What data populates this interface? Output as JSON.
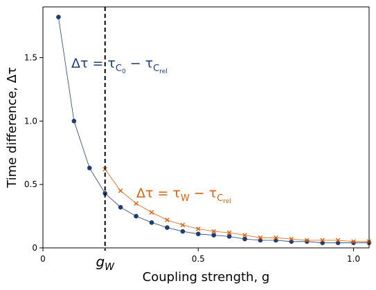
{
  "chart_data": {
    "type": "line",
    "xlabel": "Coupling strength, g",
    "ylabel": "Time difference,  Δτ",
    "xlim": [
      0,
      1.05
    ],
    "ylim": [
      0,
      1.9
    ],
    "x_ticks": [
      {
        "value": 0,
        "label": "0"
      },
      {
        "value": 0.5,
        "label": "0.5"
      },
      {
        "value": 1.0,
        "label": "1.0"
      }
    ],
    "y_ticks": [
      {
        "value": 0,
        "label": "0"
      },
      {
        "value": 0.5,
        "label": "0.5"
      },
      {
        "value": 1.0,
        "label": "1.0"
      },
      {
        "value": 1.5,
        "label": "1.5"
      }
    ],
    "grid": false,
    "vline": {
      "x": 0.2,
      "label": "g_W",
      "style": "dashed"
    },
    "series": [
      {
        "name": "Δτ = τ_C0 − τ_Crel",
        "color": "#1f3d73",
        "marker": "circle",
        "x": [
          0.05,
          0.1,
          0.15,
          0.2,
          0.25,
          0.3,
          0.35,
          0.4,
          0.45,
          0.5,
          0.55,
          0.6,
          0.65,
          0.7,
          0.75,
          0.8,
          0.85,
          0.9,
          0.95,
          1.0,
          1.05
        ],
        "y": [
          1.82,
          1.0,
          0.63,
          0.43,
          0.32,
          0.25,
          0.2,
          0.16,
          0.13,
          0.11,
          0.1,
          0.09,
          0.07,
          0.06,
          0.06,
          0.05,
          0.05,
          0.04,
          0.04,
          0.04,
          0.04
        ]
      },
      {
        "name": "Δτ = τ_W − τ_Crel",
        "color": "#d95f0e",
        "marker": "x",
        "x": [
          0.2,
          0.25,
          0.3,
          0.35,
          0.4,
          0.45,
          0.5,
          0.55,
          0.6,
          0.65,
          0.7,
          0.75,
          0.8,
          0.85,
          0.9,
          0.95,
          1.0,
          1.05
        ],
        "y": [
          0.62,
          0.45,
          0.35,
          0.28,
          0.22,
          0.18,
          0.15,
          0.13,
          0.12,
          0.1,
          0.08,
          0.08,
          0.07,
          0.06,
          0.06,
          0.06,
          0.05,
          0.05
        ]
      }
    ],
    "annotations": [
      {
        "id": "blue",
        "color": "#1f3d73",
        "prefix": "Δτ = τ",
        "sub1": "C",
        "subsub1": "0",
        "mid": " − τ",
        "sub2": "C",
        "subsub2": "rel"
      },
      {
        "id": "orange",
        "color": "#d95f0e",
        "prefix": "Δτ = τ",
        "sub1": "W",
        "subsub1": "",
        "mid": " − τ",
        "sub2": "C",
        "subsub2": "rel"
      }
    ]
  }
}
